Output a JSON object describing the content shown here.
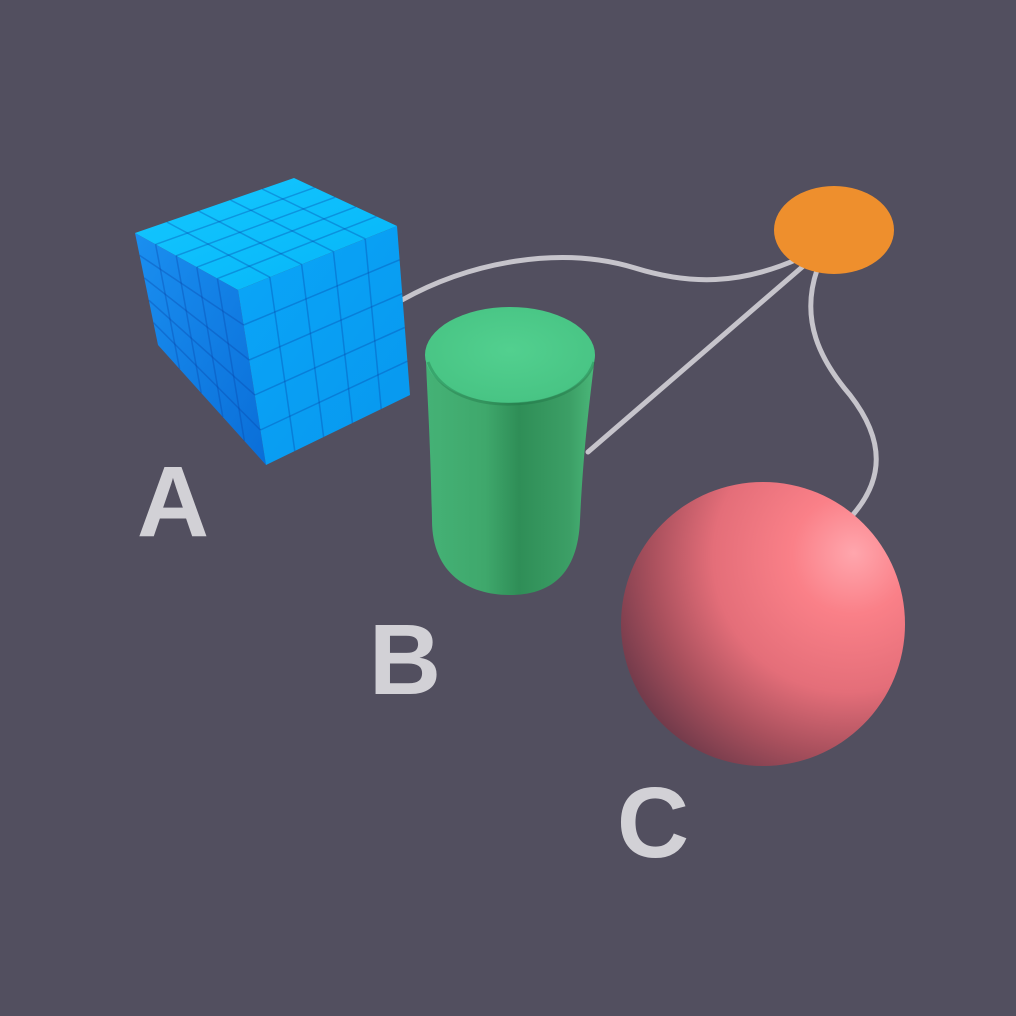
{
  "scene": {
    "background": "#524f5f",
    "connector_color": "#c6c4cb",
    "label_color": "#d2d1d6"
  },
  "objects": [
    {
      "id": "A",
      "label": "A",
      "shape": "cube",
      "color": "#0aa8f5"
    },
    {
      "id": "B",
      "label": "B",
      "shape": "cylinder",
      "color": "#47c383"
    },
    {
      "id": "C",
      "label": "C",
      "shape": "sphere",
      "color": "#f1747d"
    }
  ],
  "hub": {
    "shape": "ellipse",
    "color": "#ee8f2d"
  },
  "connections": [
    {
      "from": "hub",
      "to": "A"
    },
    {
      "from": "hub",
      "to": "B"
    },
    {
      "from": "hub",
      "to": "C"
    }
  ]
}
